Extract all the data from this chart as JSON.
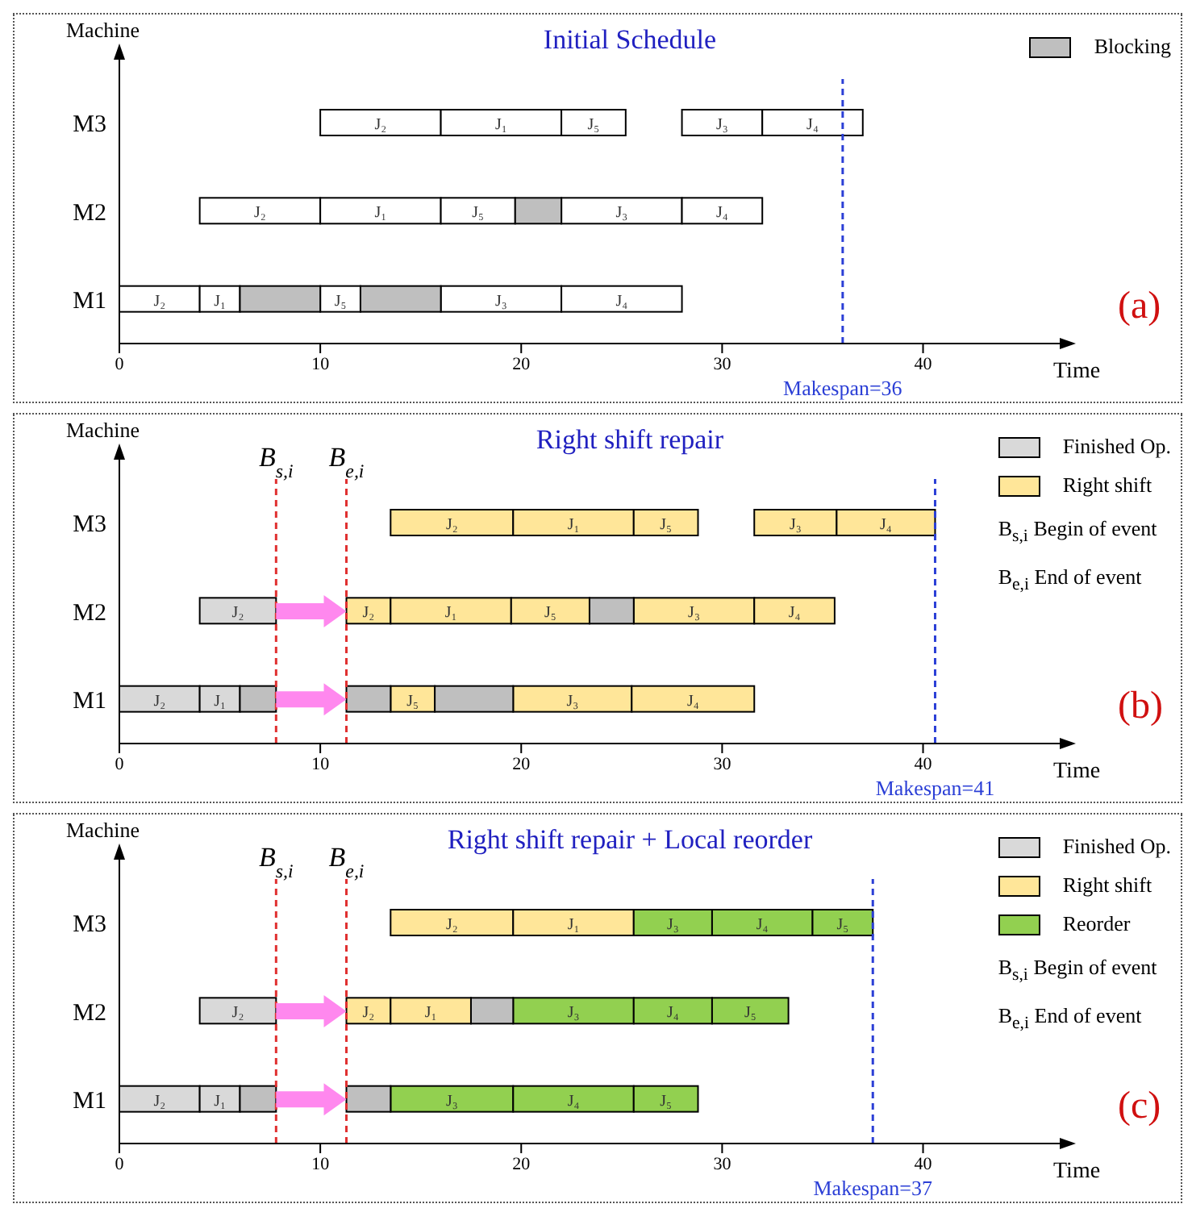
{
  "chart_data": [
    {
      "type": "bar",
      "orientation": "horizontal",
      "title": "Initial Schedule",
      "xlabel": "Time",
      "ylabel": "Machine",
      "categories": [
        "M3",
        "M2",
        "M1"
      ],
      "xlim": [
        0,
        46
      ],
      "xticks": [
        0,
        10,
        20,
        30,
        40
      ],
      "legend": "top right",
      "series": [
        {
          "color": "#ffffff",
          "base": [
            10,
            4,
            0
          ],
          "values": [
            6,
            6,
            4
          ],
          "value_labels": [
            "J₂",
            "J₂",
            "J₂"
          ]
        },
        {
          "color": "#ffffff",
          "base": [
            16,
            10,
            4
          ],
          "values": [
            6,
            6,
            2
          ],
          "value_labels": [
            "J₁",
            "J₁",
            "J₁"
          ]
        },
        {
          "color": "#ffffff",
          "base": [
            22,
            16,
            10
          ],
          "values": [
            3.2,
            3.7,
            2
          ],
          "value_labels": [
            "J₅",
            "J₅",
            "J₅"
          ]
        },
        {
          "color": "#ffffff",
          "base": [
            28,
            22,
            16
          ],
          "values": [
            4,
            6,
            6
          ],
          "value_labels": [
            "J₃",
            "J₃",
            "J₃"
          ]
        },
        {
          "color": "#ffffff",
          "base": [
            32,
            28,
            22
          ],
          "values": [
            5,
            4,
            6
          ],
          "value_labels": [
            "J₄",
            "J₄",
            "J₄"
          ]
        },
        {
          "name": "Blocking",
          "color": "#bfbfbf",
          "base": [
            null,
            19.7,
            6
          ],
          "values": [
            null,
            2.3,
            4
          ]
        },
        {
          "color": "#bfbfbf",
          "base": [
            null,
            null,
            12
          ],
          "values": [
            null,
            null,
            4
          ]
        }
      ],
      "ref_lines": [
        {
          "axis": "x",
          "value": 36,
          "label": "Makespan=36",
          "color": "#2b3fd6",
          "line_style": "dashed"
        }
      ],
      "annotations": [
        "(a)"
      ]
    },
    {
      "type": "bar",
      "orientation": "horizontal",
      "title": "Right shift repair",
      "xlabel": "Time",
      "ylabel": "Machine",
      "categories": [
        "M3",
        "M2",
        "M1"
      ],
      "xlim": [
        0,
        46
      ],
      "xticks": [
        0,
        10,
        20,
        30,
        40
      ],
      "legend": "top right",
      "series": [
        {
          "name": "Finished Op.",
          "color": "#d9d9d9",
          "base": [
            null,
            4,
            0
          ],
          "values": [
            null,
            3.8,
            4
          ],
          "value_labels": [
            null,
            "J₂",
            "J₂"
          ]
        },
        {
          "color": "#d9d9d9",
          "base": [
            null,
            null,
            4
          ],
          "values": [
            null,
            null,
            2
          ],
          "value_labels": [
            null,
            null,
            "J₁"
          ]
        },
        {
          "name": "Right shift",
          "color": "#ffe699",
          "base": [
            13.5,
            11.3,
            13.5
          ],
          "values": [
            6.1,
            2.2,
            2.2
          ],
          "value_labels": [
            "J₂",
            "J₂",
            "J₅"
          ]
        },
        {
          "color": "#ffe699",
          "base": [
            19.6,
            13.5,
            19.6
          ],
          "values": [
            6,
            6,
            5.9
          ],
          "value_labels": [
            "J₁",
            "J₁",
            "J₃"
          ]
        },
        {
          "color": "#ffe699",
          "base": [
            25.6,
            19.5,
            25.5
          ],
          "values": [
            3.2,
            3.9,
            6.1
          ],
          "value_labels": [
            "J₅",
            "J₅",
            "J₄"
          ]
        },
        {
          "color": "#ffe699",
          "base": [
            31.6,
            25.6,
            null
          ],
          "values": [
            4.1,
            6,
            null
          ],
          "value_labels": [
            "J₃",
            "J₃",
            null
          ]
        },
        {
          "color": "#ffe699",
          "base": [
            35.7,
            31.6,
            null
          ],
          "values": [
            4.9,
            4,
            null
          ],
          "value_labels": [
            "J₄",
            "J₄",
            null
          ]
        },
        {
          "color": "#bfbfbf",
          "base": [
            null,
            null,
            6
          ],
          "values": [
            null,
            null,
            1.8
          ]
        },
        {
          "color": "#bfbfbf",
          "base": [
            null,
            23.4,
            11.3
          ],
          "values": [
            null,
            2.2,
            2.2
          ]
        },
        {
          "color": "#bfbfbf",
          "base": [
            null,
            null,
            15.7
          ],
          "values": [
            null,
            null,
            3.9
          ]
        }
      ],
      "ref_lines": [
        {
          "axis": "x",
          "value": 7.8,
          "label": "B$_{s,i}$",
          "color": "#e03030",
          "line_style": "dashed"
        },
        {
          "axis": "x",
          "value": 11.3,
          "label": "B$_{e,i}$",
          "color": "#e03030",
          "line_style": "dashed"
        },
        {
          "axis": "x",
          "value": 40.6,
          "label": "Makespan=41",
          "color": "#2b3fd6",
          "line_style": "dashed"
        }
      ],
      "annotations": [
        "(b)",
        "B$_{s,i}$ Begin of event",
        "B$_{e,i}$ End of event"
      ]
    },
    {
      "type": "bar",
      "orientation": "horizontal",
      "title": "Right shift repair + Local reorder",
      "xlabel": "Time",
      "ylabel": "Machine",
      "categories": [
        "M3",
        "M2",
        "M1"
      ],
      "xlim": [
        0,
        46
      ],
      "xticks": [
        0,
        10,
        20,
        30,
        40
      ],
      "legend": "top right",
      "series": [
        {
          "name": "Finished Op.",
          "color": "#d9d9d9",
          "base": [
            null,
            4,
            0
          ],
          "values": [
            null,
            3.8,
            4
          ],
          "value_labels": [
            null,
            "J₂",
            "J₂"
          ]
        },
        {
          "color": "#d9d9d9",
          "base": [
            null,
            null,
            4
          ],
          "values": [
            null,
            null,
            2
          ],
          "value_labels": [
            null,
            null,
            "J₁"
          ]
        },
        {
          "name": "Right shift",
          "color": "#ffe699",
          "base": [
            13.5,
            11.3,
            null
          ],
          "values": [
            6.1,
            2.2,
            null
          ],
          "value_labels": [
            "J₂",
            "J₂",
            null
          ]
        },
        {
          "color": "#ffe699",
          "base": [
            19.6,
            13.5,
            null
          ],
          "values": [
            6,
            4,
            null
          ],
          "value_labels": [
            "J₁",
            "J₁",
            null
          ]
        },
        {
          "name": "Reorder",
          "color": "#92d050",
          "base": [
            25.6,
            19.6,
            13.5
          ],
          "values": [
            3.9,
            6,
            6.1
          ],
          "value_labels": [
            "J₃",
            "J₃",
            "J₃"
          ]
        },
        {
          "color": "#92d050",
          "base": [
            29.5,
            25.6,
            19.6
          ],
          "values": [
            5,
            3.9,
            6
          ],
          "value_labels": [
            "J₄",
            "J₄",
            "J₄"
          ]
        },
        {
          "color": "#92d050",
          "base": [
            34.5,
            29.5,
            25.6
          ],
          "values": [
            3,
            3.8,
            3.2
          ],
          "value_labels": [
            "J₅",
            "J₅",
            "J₅"
          ]
        },
        {
          "color": "#bfbfbf",
          "base": [
            null,
            null,
            6
          ],
          "values": [
            null,
            null,
            1.8
          ]
        },
        {
          "color": "#bfbfbf",
          "base": [
            null,
            17.5,
            11.3
          ],
          "values": [
            null,
            2.1,
            2.2
          ]
        }
      ],
      "ref_lines": [
        {
          "axis": "x",
          "value": 7.8,
          "label": "B$_{s,i}$",
          "color": "#e03030",
          "line_style": "dashed"
        },
        {
          "axis": "x",
          "value": 11.3,
          "label": "B$_{e,i}$",
          "color": "#e03030",
          "line_style": "dashed"
        },
        {
          "axis": "x",
          "value": 37.5,
          "label": "Makespan=37",
          "color": "#2b3fd6",
          "line_style": "dashed"
        }
      ],
      "annotations": [
        "(c)",
        "B$_{s,i}$ Begin of event",
        "B$_{e,i}$ End of event"
      ]
    }
  ]
}
